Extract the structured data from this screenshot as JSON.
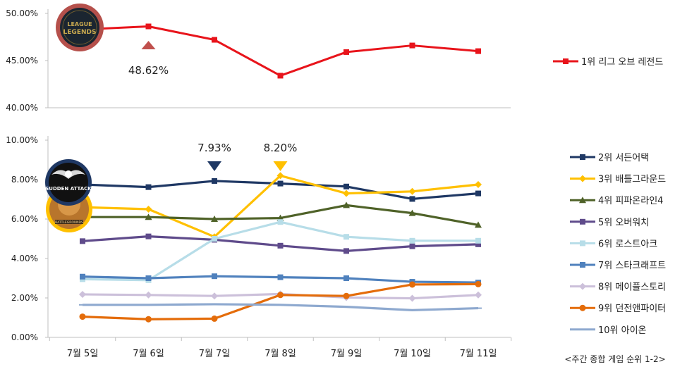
{
  "chart_data": [
    {
      "type": "line",
      "panel": "top",
      "categories": [
        "7월 5일",
        "7월 6일",
        "7월 7일",
        "7월 8일",
        "7월 9일",
        "7월 10일",
        "7월 11일"
      ],
      "ylim": [
        40,
        50
      ],
      "yticks": [
        "40.00%",
        "45.00%",
        "50.00%"
      ],
      "series": [
        {
          "name": "1위 리그 오브 레전드",
          "color": "#e8141b",
          "marker": "square",
          "values": [
            48.3,
            48.62,
            47.2,
            43.4,
            45.9,
            46.6,
            46.0
          ]
        }
      ],
      "annotations": [
        {
          "label": "48.62%",
          "category_index": 1,
          "marker": "triangle-up",
          "marker_color": "#c0504d"
        }
      ],
      "logo": "League of Legends",
      "logo_text": [
        "LEAGUE",
        "LEGENDS"
      ],
      "grid": false,
      "legend": "right"
    },
    {
      "type": "line",
      "panel": "bottom",
      "categories": [
        "7월 5일",
        "7월 6일",
        "7월 7일",
        "7월 8일",
        "7월 9일",
        "7월 10일",
        "7월 11일"
      ],
      "ylim": [
        0,
        10
      ],
      "yticks": [
        "0.00%",
        "2.00%",
        "4.00%",
        "6.00%",
        "8.00%",
        "10.00%"
      ],
      "series": [
        {
          "name": "2위 서든어택",
          "color": "#1f3864",
          "marker": "square",
          "values": [
            7.75,
            7.62,
            7.93,
            7.8,
            7.65,
            7.02,
            7.3
          ]
        },
        {
          "name": "3위 배틀그라운드",
          "color": "#ffc000",
          "marker": "diamond",
          "values": [
            6.6,
            6.5,
            5.1,
            8.2,
            7.3,
            7.4,
            7.75
          ]
        },
        {
          "name": "4위 피파온라인4",
          "color": "#4f6228",
          "marker": "triangle",
          "values": [
            6.1,
            6.1,
            6.0,
            6.05,
            6.7,
            6.3,
            5.7
          ]
        },
        {
          "name": "5위 오버워치",
          "color": "#5f4b8b",
          "marker": "square",
          "values": [
            4.88,
            5.12,
            4.95,
            4.65,
            4.38,
            4.62,
            4.72
          ]
        },
        {
          "name": "6위 로스트아크",
          "color": "#b7dde8",
          "marker": "square",
          "values": [
            2.95,
            2.9,
            5.0,
            5.85,
            5.1,
            4.9,
            4.9
          ]
        },
        {
          "name": "7위 스타크래프트",
          "color": "#4f81bd",
          "marker": "square",
          "values": [
            3.08,
            3.0,
            3.1,
            3.05,
            3.0,
            2.82,
            2.78
          ]
        },
        {
          "name": "8위 메이플스토리",
          "color": "#ccc0da",
          "marker": "diamond",
          "values": [
            2.18,
            2.15,
            2.1,
            2.2,
            2.02,
            1.98,
            2.15
          ]
        },
        {
          "name": "9위 던전앤파이터",
          "color": "#e46c0a",
          "marker": "circle",
          "values": [
            1.05,
            0.92,
            0.95,
            2.15,
            2.1,
            2.68,
            2.7
          ]
        },
        {
          "name": "10위 아이온",
          "color": "#8ea9cf",
          "marker": "dash",
          "values": [
            1.65,
            1.65,
            1.68,
            1.65,
            1.55,
            1.38,
            1.48
          ]
        }
      ],
      "annotations": [
        {
          "label": "7.93%",
          "category_index": 2,
          "marker": "triangle-down",
          "marker_color": "#1f3864"
        },
        {
          "label": "8.20%",
          "category_index": 3,
          "marker": "triangle-down",
          "marker_color": "#ffc000"
        }
      ],
      "logos": [
        "Sudden Attack",
        "Battlegrounds"
      ],
      "logo_text": [
        "SUDDEN ATTACK",
        "BATTLEGROUNDS"
      ],
      "grid": false,
      "legend": "right"
    }
  ],
  "caption": "<주간 종합 게임 순위 1-2>"
}
